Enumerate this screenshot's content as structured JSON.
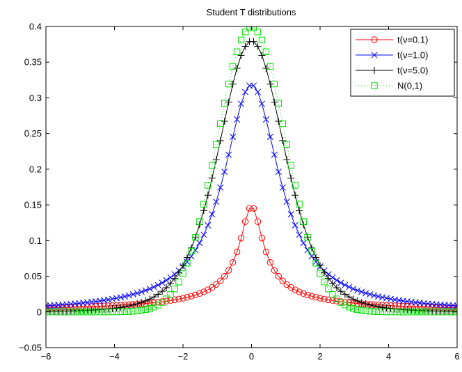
{
  "chart_data": {
    "type": "line",
    "title": "Student T distributions",
    "xlabel": "",
    "ylabel": "",
    "xlim": [
      -6,
      6
    ],
    "ylim": [
      -0.05,
      0.4
    ],
    "x_ticks": [
      -6,
      -4,
      -2,
      0,
      2,
      4,
      6
    ],
    "x_tick_labels": [
      "−6",
      "−4",
      "−2",
      "0",
      "2",
      "4",
      "6"
    ],
    "y_ticks": [
      -0.05,
      0,
      0.05,
      0.1,
      0.15,
      0.2,
      0.25,
      0.3,
      0.35,
      0.4
    ],
    "y_tick_labels": [
      "−0.05",
      "0",
      "0.05",
      "0.1",
      "0.15",
      "0.2",
      "0.25",
      "0.3",
      "0.35",
      "0.4"
    ],
    "grid": false,
    "legend_position": "top-right",
    "x_range": {
      "start": -6,
      "end": 6,
      "count": 100
    },
    "series": [
      {
        "name": "t(ν=0.1)",
        "color": "#ff0000",
        "marker": "circle",
        "line": "solid",
        "distribution": "student-t",
        "dof": 0.1
      },
      {
        "name": "t(ν=1.0)",
        "color": "#0000ff",
        "marker": "x",
        "line": "solid",
        "distribution": "student-t",
        "dof": 1.0
      },
      {
        "name": "t(ν=5.0)",
        "color": "#000000",
        "marker": "plus",
        "line": "solid",
        "distribution": "student-t",
        "dof": 5.0
      },
      {
        "name": "N(0,1)",
        "color": "#00dd00",
        "marker": "square",
        "line": "dotted",
        "distribution": "normal",
        "mean": 0,
        "std": 1
      }
    ]
  }
}
